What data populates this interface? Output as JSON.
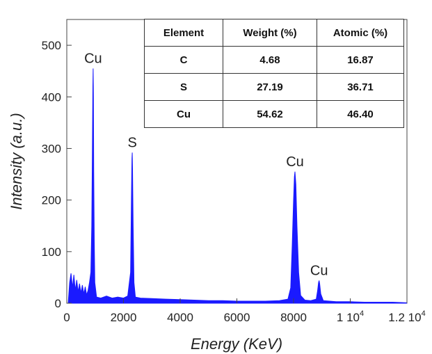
{
  "chart_data": {
    "type": "line",
    "xlabel": "Energy (KeV)",
    "ylabel": "Intensity (a.u.)",
    "xlim": [
      0,
      12000
    ],
    "ylim": [
      0,
      550
    ],
    "x_ticks": [
      {
        "value": 0,
        "label": "0"
      },
      {
        "value": 2000,
        "label": "2000"
      },
      {
        "value": 4000,
        "label": "4000"
      },
      {
        "value": 6000,
        "label": "6000"
      },
      {
        "value": 8000,
        "label": "8000"
      },
      {
        "value": 10000,
        "label": "1 10",
        "exp": "4"
      },
      {
        "value": 12000,
        "label": "1.2 10",
        "exp": "4"
      }
    ],
    "y_ticks": [
      0,
      100,
      200,
      300,
      400,
      500
    ],
    "series_color": "#1a1aff",
    "peaks": [
      {
        "label": "Cu",
        "x": 930,
        "y": 455
      },
      {
        "label": "S",
        "x": 2310,
        "y": 292
      },
      {
        "label": "Cu",
        "x": 8050,
        "y": 255
      },
      {
        "label": "Cu",
        "x": 8900,
        "y": 44
      }
    ],
    "spectrum": [
      [
        50,
        0
      ],
      [
        100,
        40
      ],
      [
        150,
        58
      ],
      [
        200,
        30
      ],
      [
        250,
        55
      ],
      [
        300,
        25
      ],
      [
        350,
        45
      ],
      [
        400,
        22
      ],
      [
        450,
        38
      ],
      [
        500,
        20
      ],
      [
        550,
        35
      ],
      [
        600,
        18
      ],
      [
        650,
        32
      ],
      [
        700,
        16
      ],
      [
        750,
        25
      ],
      [
        800,
        40
      ],
      [
        850,
        60
      ],
      [
        880,
        150
      ],
      [
        900,
        280
      ],
      [
        920,
        420
      ],
      [
        930,
        455
      ],
      [
        940,
        400
      ],
      [
        950,
        260
      ],
      [
        970,
        120
      ],
      [
        990,
        40
      ],
      [
        1050,
        12
      ],
      [
        1200,
        10
      ],
      [
        1400,
        14
      ],
      [
        1600,
        10
      ],
      [
        1800,
        12
      ],
      [
        2000,
        10
      ],
      [
        2150,
        14
      ],
      [
        2250,
        60
      ],
      [
        2280,
        200
      ],
      [
        2300,
        280
      ],
      [
        2310,
        292
      ],
      [
        2320,
        260
      ],
      [
        2340,
        150
      ],
      [
        2370,
        40
      ],
      [
        2420,
        12
      ],
      [
        2600,
        10
      ],
      [
        3000,
        9
      ],
      [
        3500,
        8
      ],
      [
        4000,
        7
      ],
      [
        4500,
        6
      ],
      [
        5000,
        5
      ],
      [
        5500,
        5
      ],
      [
        6000,
        4
      ],
      [
        6500,
        4
      ],
      [
        7000,
        4
      ],
      [
        7500,
        5
      ],
      [
        7800,
        8
      ],
      [
        7900,
        30
      ],
      [
        7950,
        110
      ],
      [
        8000,
        200
      ],
      [
        8030,
        245
      ],
      [
        8050,
        255
      ],
      [
        8080,
        230
      ],
      [
        8120,
        150
      ],
      [
        8180,
        60
      ],
      [
        8250,
        15
      ],
      [
        8400,
        6
      ],
      [
        8600,
        5
      ],
      [
        8800,
        8
      ],
      [
        8850,
        25
      ],
      [
        8880,
        40
      ],
      [
        8900,
        44
      ],
      [
        8920,
        38
      ],
      [
        8960,
        18
      ],
      [
        9050,
        5
      ],
      [
        9500,
        3
      ],
      [
        10000,
        3
      ],
      [
        10500,
        2
      ],
      [
        11000,
        2
      ],
      [
        11500,
        2
      ],
      [
        12000,
        1
      ]
    ]
  },
  "table": {
    "headers": [
      "Element",
      "Weight (%)",
      "Atomic (%)"
    ],
    "rows": [
      {
        "element": "C",
        "weight": "4.68",
        "atomic": "16.87"
      },
      {
        "element": "S",
        "weight": "27.19",
        "atomic": "36.71"
      },
      {
        "element": "Cu",
        "weight": "54.62",
        "atomic": "46.40"
      }
    ]
  }
}
